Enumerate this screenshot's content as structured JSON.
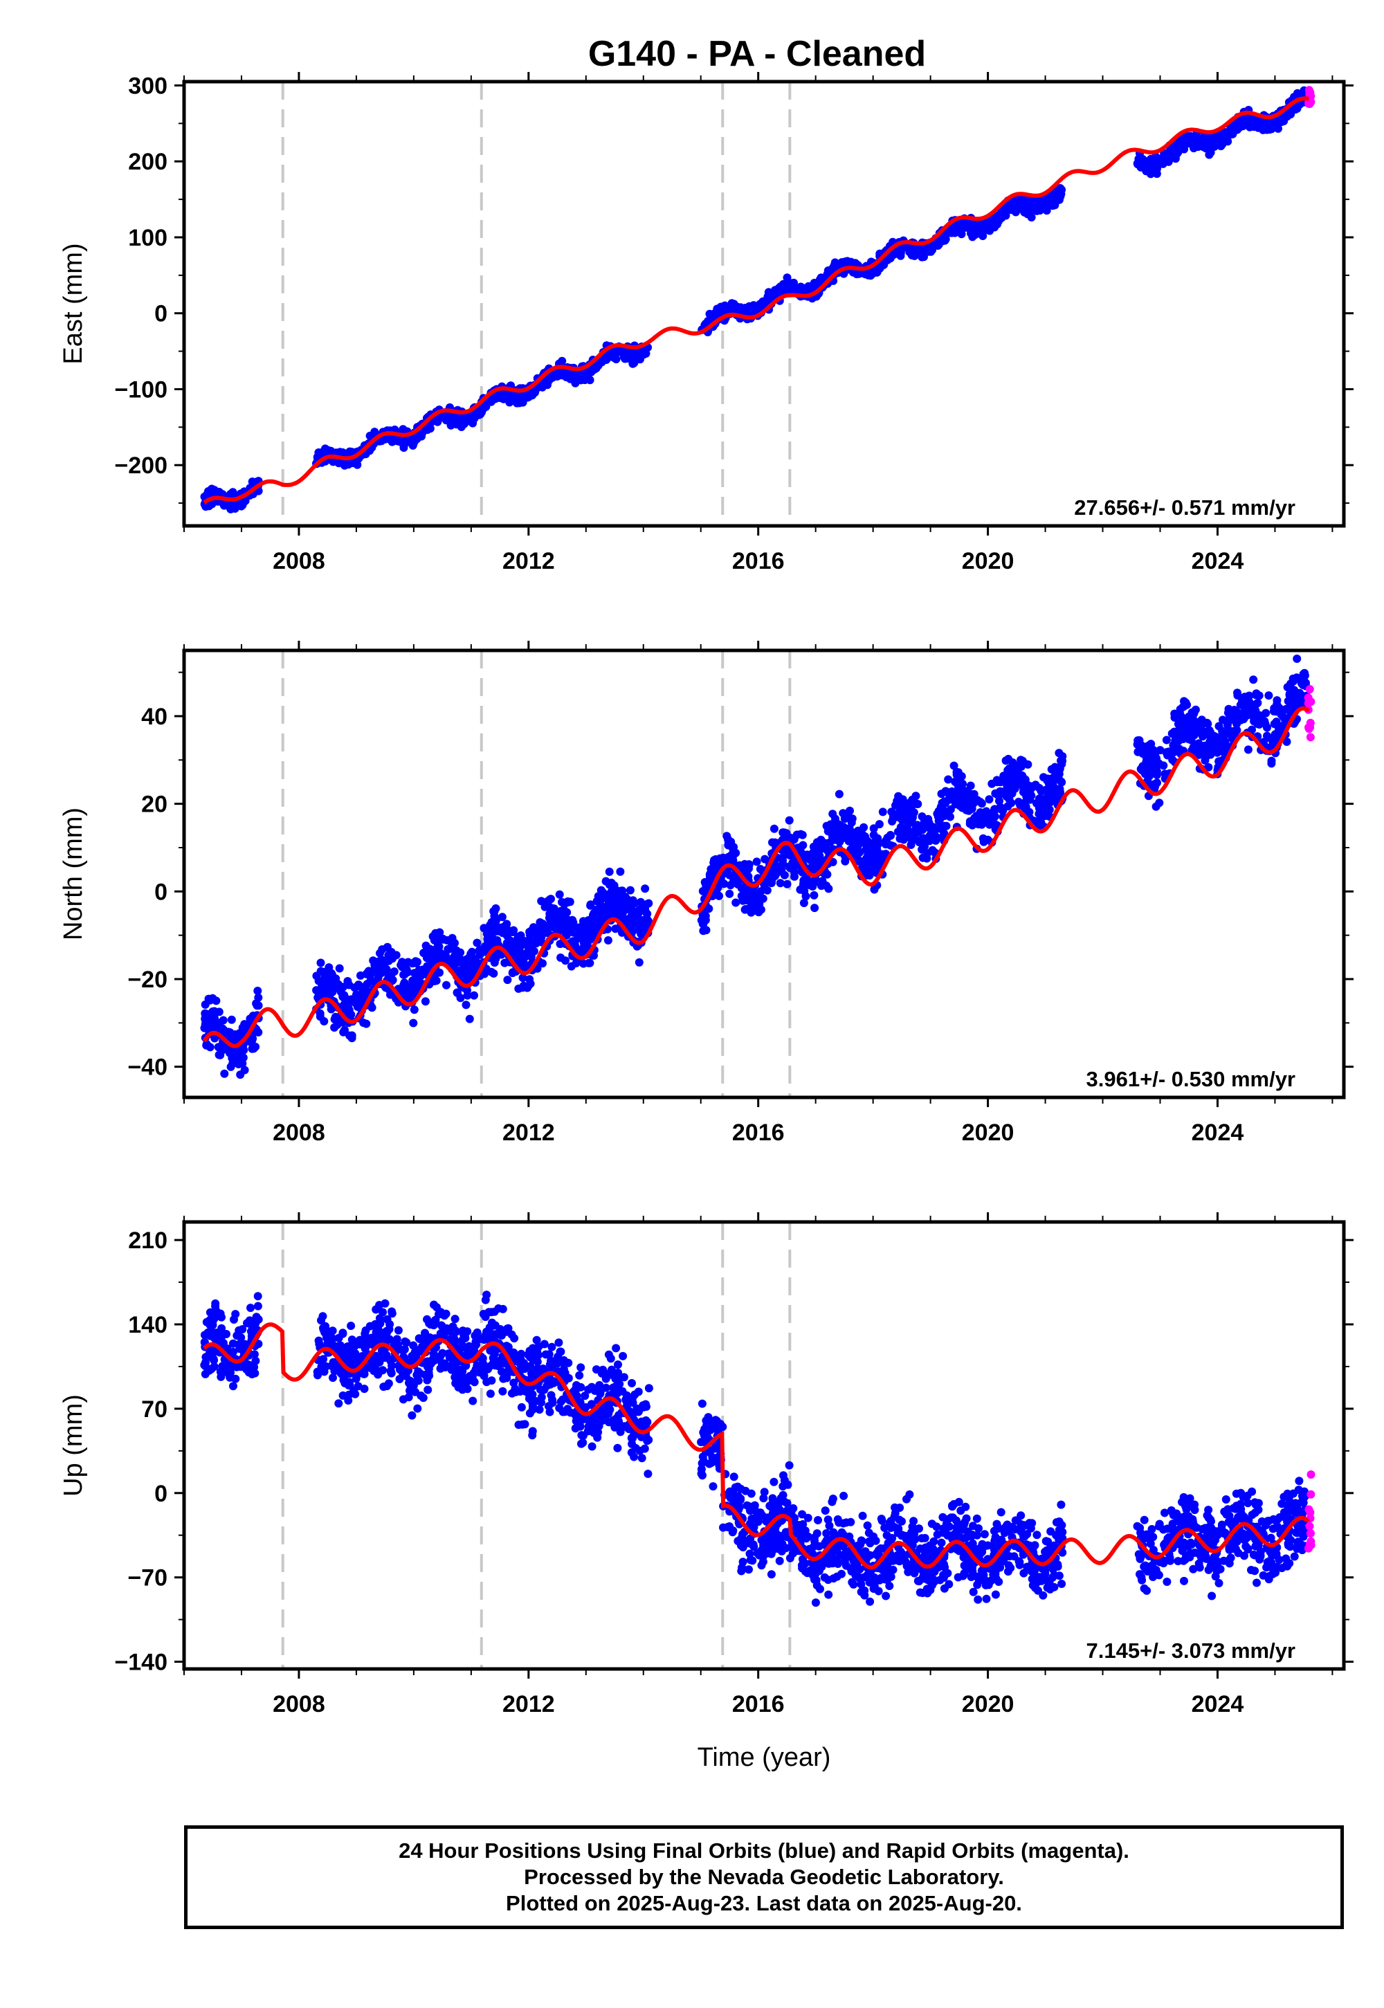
{
  "title": "G140  - PA - Cleaned",
  "colors": {
    "final": "#0000ff",
    "rapid": "#ff00ff",
    "model": "#ff0000",
    "breaks": "#c8c8c8"
  },
  "footer": {
    "line1": "24 Hour Positions Using Final Orbits (blue) and Rapid Orbits (magenta).",
    "line2": "Processed by the Nevada Geodetic Laboratory.",
    "line3": "Plotted on 2025-Aug-23. Last data on 2025-Aug-20."
  },
  "chart_data": [
    {
      "type": "scatter",
      "panel": "east",
      "ylabel": "East (mm)",
      "xlabel": "",
      "xlim": [
        2006.0,
        2026.2
      ],
      "ylim": [
        -280,
        305
      ],
      "xticks": [
        2008,
        2012,
        2016,
        2020,
        2024
      ],
      "yticks": [
        -200,
        -100,
        0,
        100,
        200,
        300
      ],
      "ytick_labels": [
        "−200",
        "−100",
        "0",
        "100",
        "200",
        "300"
      ],
      "rate_label": "27.656+/- 0.571 mm/yr",
      "step_breaks": [
        2007.72,
        2011.18,
        2015.38,
        2016.55
      ],
      "data_segments": [
        [
          2006.35,
          2007.3
        ],
        [
          2008.3,
          2014.1
        ],
        [
          2015.0,
          2021.3
        ],
        [
          2022.6,
          2023.0
        ],
        [
          2023.05,
          2025.6
        ]
      ],
      "series": [
        {
          "name": "Final Orbits",
          "role": "final",
          "color": "#0000ff",
          "x_start": 2006.35,
          "x_end": 2025.55,
          "count": 2300,
          "seed": 11,
          "trend": {
            "t0": 2006.35,
            "v0": -255,
            "rate": 27.656,
            "amp": 8,
            "noise": 7
          }
        },
        {
          "name": "Rapid Orbits",
          "role": "rapid",
          "color": "#ff00ff",
          "x_start": 2025.58,
          "x_end": 2025.63,
          "count": 10,
          "seed": 21,
          "trend": {
            "t0": 2006.35,
            "v0": -255,
            "rate": 27.656,
            "amp": 8,
            "noise": 8
          }
        },
        {
          "name": "Model",
          "role": "model",
          "color": "#ff0000",
          "x": [
            2006.35,
            2007.0,
            2007.72,
            2008.5,
            2010.0,
            2011.18,
            2012.0,
            2014.0,
            2015.38,
            2016.55,
            2018.0,
            2020.0,
            2022.0,
            2024.0,
            2025.6
          ],
          "y": [
            -255,
            -235,
            -225,
            -196,
            -150,
            -115,
            -92,
            -35,
            -12,
            18,
            70,
            135,
            195,
            248,
            278
          ],
          "amp": 7
        }
      ]
    },
    {
      "type": "scatter",
      "panel": "north",
      "ylabel": "North (mm)",
      "xlabel": "",
      "xlim": [
        2006.0,
        2026.2
      ],
      "ylim": [
        -47,
        55
      ],
      "xticks": [
        2008,
        2012,
        2016,
        2020,
        2024
      ],
      "yticks": [
        -40,
        -20,
        0,
        20,
        40
      ],
      "ytick_labels": [
        "−40",
        "−20",
        "0",
        "20",
        "40"
      ],
      "rate_label": "3.961+/- 0.530 mm/yr",
      "step_breaks": [
        2007.72,
        2011.18,
        2015.38,
        2016.55
      ],
      "data_segments": [
        [
          2006.35,
          2007.3
        ],
        [
          2008.3,
          2014.1
        ],
        [
          2015.0,
          2021.3
        ],
        [
          2022.6,
          2023.0
        ],
        [
          2023.05,
          2025.6
        ]
      ],
      "series": [
        {
          "name": "Final Orbits",
          "role": "final",
          "color": "#0000ff",
          "x_start": 2006.35,
          "x_end": 2025.55,
          "count": 2300,
          "seed": 12,
          "trend": {
            "t0": 2006.35,
            "v0": -34,
            "rate": 3.961,
            "amp": 4,
            "noise": 4.5
          }
        },
        {
          "name": "Rapid Orbits",
          "role": "rapid",
          "color": "#ff00ff",
          "x_start": 2025.58,
          "x_end": 2025.63,
          "count": 10,
          "seed": 22,
          "trend": {
            "t0": 2006.35,
            "v0": -34,
            "rate": 3.961,
            "amp": 4,
            "noise": 6
          }
        },
        {
          "name": "Model",
          "role": "model",
          "color": "#ff0000",
          "x": [
            2006.35,
            2007.0,
            2007.72,
            2008.5,
            2010.0,
            2011.18,
            2012.0,
            2014.0,
            2015.38,
            2016.55,
            2018.0,
            2020.0,
            2022.0,
            2024.0,
            2025.6
          ],
          "y": [
            -37,
            -31,
            -30,
            -28,
            -22,
            -17,
            -15,
            -8,
            2,
            8,
            5,
            13,
            22,
            30,
            39
          ],
          "amp": 3.5
        }
      ]
    },
    {
      "type": "scatter",
      "panel": "up",
      "ylabel": "Up (mm)",
      "xlabel": "Time (year)",
      "xlim": [
        2006.0,
        2026.2
      ],
      "ylim": [
        -146,
        225
      ],
      "xticks": [
        2008,
        2012,
        2016,
        2020,
        2024
      ],
      "yticks": [
        -140,
        -70,
        0,
        70,
        140,
        210
      ],
      "ytick_labels": [
        "−140",
        "−70",
        "0",
        "70",
        "140",
        "210"
      ],
      "rate_label": "7.145+/- 3.073 mm/yr",
      "step_breaks": [
        2007.72,
        2011.18,
        2015.38,
        2016.55
      ],
      "data_segments": [
        [
          2006.35,
          2007.3
        ],
        [
          2008.3,
          2014.1
        ],
        [
          2015.0,
          2021.3
        ],
        [
          2022.6,
          2023.0
        ],
        [
          2023.05,
          2025.6
        ]
      ],
      "series": [
        {
          "name": "Final Orbits",
          "role": "final",
          "color": "#0000ff",
          "x_start": 2006.35,
          "x_end": 2025.55,
          "count": 2300,
          "seed": 13,
          "trend": {
            "model_follow": true,
            "amp": 0,
            "noise": 22
          }
        },
        {
          "name": "Rapid Orbits",
          "role": "rapid",
          "color": "#ff00ff",
          "x_start": 2025.58,
          "x_end": 2025.63,
          "count": 12,
          "seed": 23,
          "trend": {
            "model_follow": true,
            "amp": 0,
            "noise": 28
          }
        },
        {
          "name": "Model",
          "role": "model",
          "color": "#ff0000",
          "x": [
            2006.35,
            2007.0,
            2007.72,
            2007.73,
            2008.5,
            2010.0,
            2011.18,
            2012.0,
            2013.0,
            2014.0,
            2015.38,
            2015.39,
            2016.55,
            2016.56,
            2018.0,
            2020.0,
            2022.0,
            2024.0,
            2025.6
          ],
          "y": [
            112,
            120,
            135,
            102,
            110,
            115,
            120,
            100,
            75,
            60,
            40,
            -20,
            -30,
            -42,
            -52,
            -50,
            -48,
            -38,
            -30
          ],
          "amp": 10
        }
      ]
    }
  ]
}
